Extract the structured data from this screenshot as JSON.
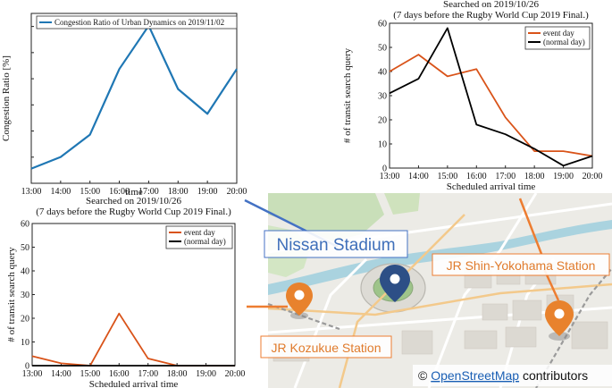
{
  "chart_data": [
    {
      "type": "line",
      "title": "",
      "xlabel": "time",
      "ylabel": "Congestion Ratio [%]",
      "x": [
        "13:00",
        "14:00",
        "15:00",
        "16:00",
        "17:00",
        "18:00",
        "19:00",
        "20:00"
      ],
      "ylim": [
        0,
        2200
      ],
      "y_ticks_visible": false,
      "legend": "top-left",
      "grid": false,
      "series": [
        {
          "name": "Congestion Ratio of Urban Dynamics on 2019/11/02",
          "color": "#1f77b4",
          "values": [
            190,
            340,
            630,
            1480,
            2040,
            1220,
            900,
            1480
          ]
        }
      ]
    },
    {
      "type": "line",
      "title": "Searched on 2019/10/26",
      "subtitle": "(7 days before the Rugby World Cup 2019 Final.)",
      "xlabel": "Scheduled arrival time",
      "ylabel": "# of transit search query",
      "x": [
        "13:00",
        "14:00",
        "15:00",
        "16:00",
        "17:00",
        "18:00",
        "19:00",
        "20:00"
      ],
      "ylim": [
        0,
        60
      ],
      "yticks": [
        0,
        10,
        20,
        30,
        40,
        50,
        60
      ],
      "legend": "top-right",
      "grid": false,
      "series": [
        {
          "name": "event day",
          "color": "#d95319",
          "values": [
            40,
            47,
            38,
            41,
            21,
            7,
            7,
            5
          ]
        },
        {
          "name": "(normal day)",
          "color": "#000000",
          "values": [
            31,
            37,
            58,
            18,
            14,
            8,
            1,
            5
          ]
        }
      ]
    },
    {
      "type": "line",
      "title": "Searched on 2019/10/26",
      "subtitle": "(7 days before the Rugby World Cup 2019 Final.)",
      "xlabel": "Scheduled arrival time",
      "ylabel": "# of transit search query",
      "x": [
        "13:00",
        "14:00",
        "15:00",
        "16:00",
        "17:00",
        "18:00",
        "19:00",
        "20:00"
      ],
      "ylim": [
        0,
        60
      ],
      "yticks": [
        0,
        10,
        20,
        30,
        40,
        50,
        60
      ],
      "legend": "top-right",
      "grid": false,
      "series": [
        {
          "name": "event day",
          "color": "#d95319",
          "values": [
            4,
            1,
            0,
            22,
            3,
            0,
            0,
            0
          ]
        },
        {
          "name": "(normal day)",
          "color": "#000000",
          "values": [
            0,
            0,
            0,
            0,
            0,
            0,
            0,
            0
          ]
        }
      ]
    }
  ],
  "map": {
    "labels": {
      "stadium": "Nissan Stadium",
      "shin_yokohama": "JR Shin-Yokohama Station",
      "kozukue": "JR Kozukue Station"
    },
    "copyright_symbol": "©",
    "copyright_link": "OpenStreetMap",
    "copyright_suffix": "contributors",
    "colors": {
      "stadium_pin": "#2d4f86",
      "station_pin": "#e8822d",
      "stadium_callout": "#4472c4",
      "station_callout": "#ed7d31"
    }
  }
}
